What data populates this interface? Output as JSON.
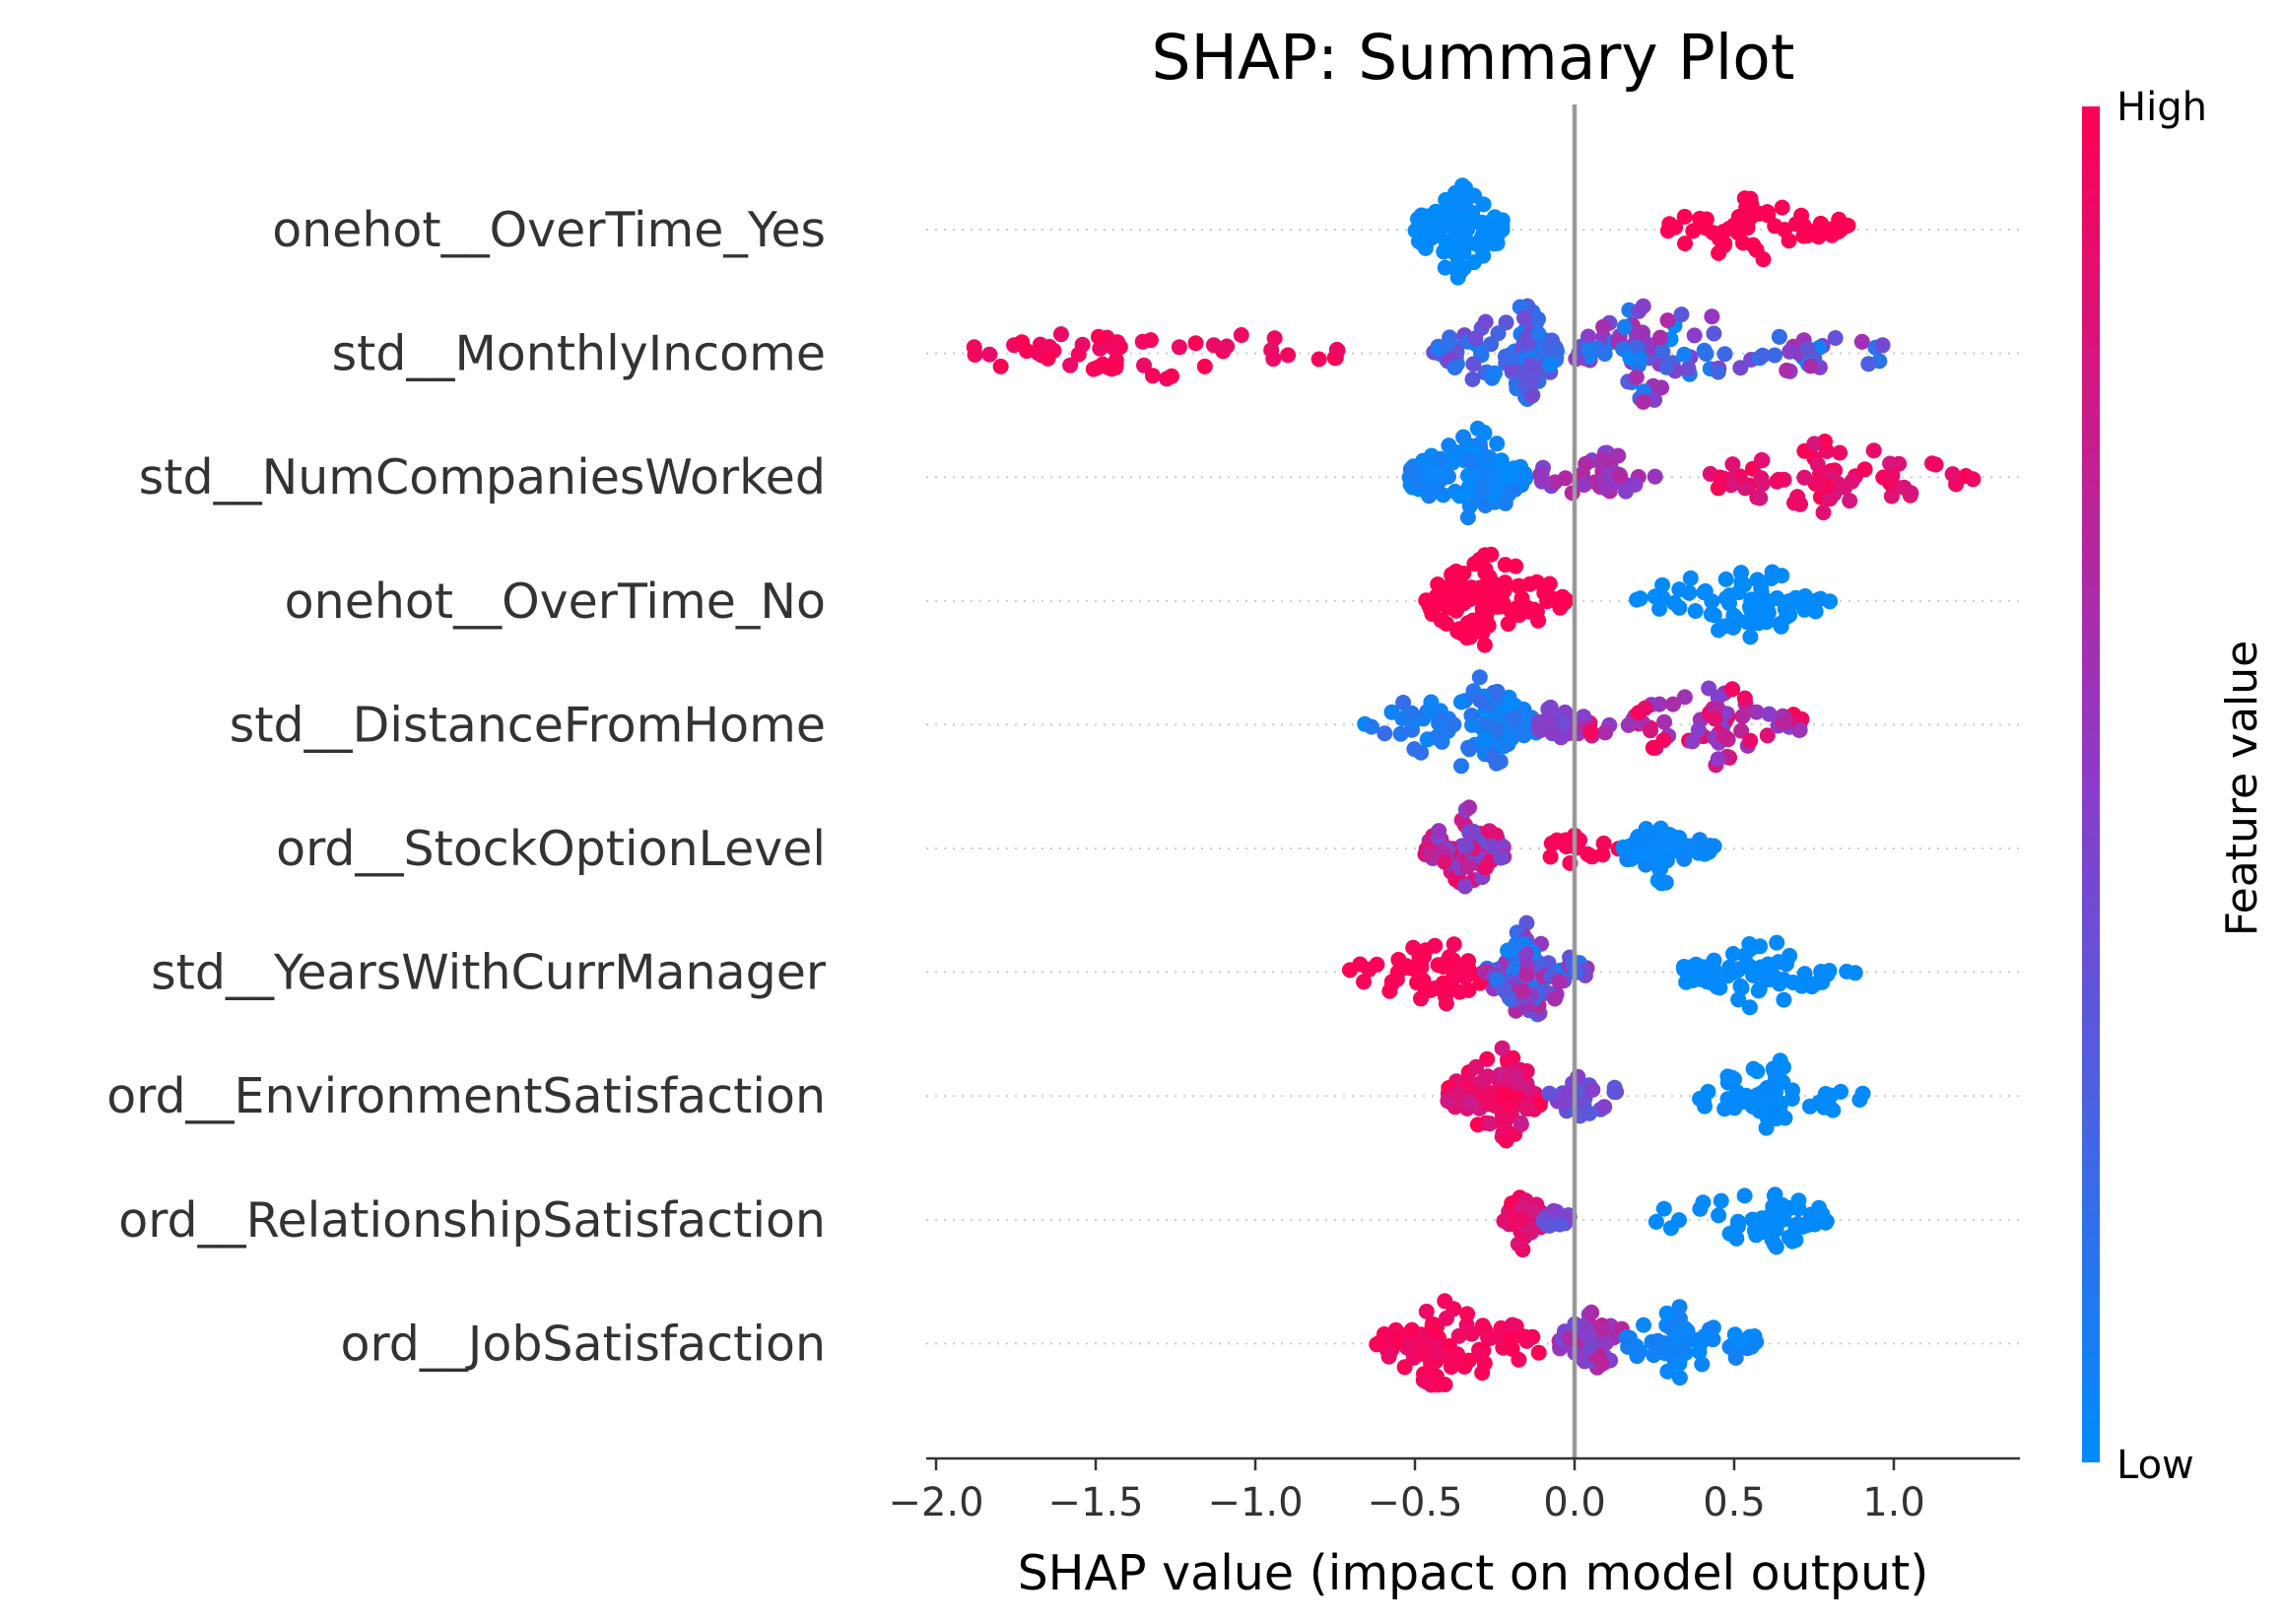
{
  "chart_data": {
    "type": "scatter",
    "subtype": "beeswarm",
    "title": "SHAP: Summary Plot",
    "xlabel": "SHAP value (impact on model output)",
    "ylabel": "",
    "xlim": [
      -2.05,
      1.4
    ],
    "xticks": [
      -2.0,
      -1.5,
      -1.0,
      -0.5,
      0.0,
      0.5,
      1.0
    ],
    "xtick_labels": [
      "−2.0",
      "−1.5",
      "−1.0",
      "−0.5",
      "0.0",
      "0.5",
      "1.0"
    ],
    "grid": "dotted row guides",
    "zero_line": 0.0,
    "colorbar": {
      "title": "Feature value",
      "high_label": "High",
      "low_label": "Low",
      "high_color": "#ff0d57",
      "mid_color": "#8b3cc9",
      "low_color": "#1e88e5"
    },
    "features": [
      {
        "name": "onehot__OverTime_Yes",
        "clusters": [
          {
            "min": -0.5,
            "max": -0.22,
            "center": -0.37,
            "n": 110,
            "low": 0.0,
            "high": 0.02
          },
          {
            "min": 0.28,
            "max": 0.88,
            "center": 0.55,
            "n": 60,
            "low": 0.98,
            "high": 1.0
          }
        ]
      },
      {
        "name": "std__MonthlyIncome",
        "clusters": [
          {
            "min": -1.9,
            "max": -0.7,
            "center": -1.45,
            "n": 55,
            "low": 0.9,
            "high": 1.0
          },
          {
            "min": -0.45,
            "max": -0.05,
            "center": -0.15,
            "n": 150,
            "low": 0.05,
            "high": 0.45
          },
          {
            "min": 0.0,
            "max": 0.97,
            "center": 0.2,
            "n": 110,
            "low": 0.0,
            "high": 0.65
          }
        ]
      },
      {
        "name": "std__NumCompaniesWorked",
        "clusters": [
          {
            "min": -0.52,
            "max": -0.15,
            "center": -0.3,
            "n": 120,
            "low": 0.0,
            "high": 0.1
          },
          {
            "min": -0.12,
            "max": 0.3,
            "center": 0.1,
            "n": 40,
            "low": 0.45,
            "high": 0.7
          },
          {
            "min": 0.4,
            "max": 1.25,
            "center": 0.8,
            "n": 70,
            "low": 0.8,
            "high": 1.0
          }
        ]
      },
      {
        "name": "onehot__OverTime_No",
        "clusters": [
          {
            "min": -0.47,
            "max": -0.01,
            "center": -0.28,
            "n": 120,
            "low": 0.98,
            "high": 1.0
          },
          {
            "min": 0.17,
            "max": 0.8,
            "center": 0.55,
            "n": 70,
            "low": 0.0,
            "high": 0.02
          }
        ]
      },
      {
        "name": "std__DistanceFromHome",
        "clusters": [
          {
            "min": -0.67,
            "max": -0.12,
            "center": -0.28,
            "n": 110,
            "low": 0.0,
            "high": 0.2
          },
          {
            "min": -0.12,
            "max": 0.0,
            "center": -0.07,
            "n": 25,
            "low": 0.35,
            "high": 0.55
          },
          {
            "min": 0.0,
            "max": 0.72,
            "center": 0.45,
            "n": 80,
            "low": 0.45,
            "high": 1.0
          }
        ]
      },
      {
        "name": "ord__StockOptionLevel",
        "clusters": [
          {
            "min": -0.47,
            "max": -0.22,
            "center": -0.33,
            "n": 80,
            "low": 0.35,
            "high": 0.95
          },
          {
            "min": -0.08,
            "max": 0.15,
            "center": 0.0,
            "n": 20,
            "low": 0.95,
            "high": 1.0
          },
          {
            "min": 0.15,
            "max": 0.44,
            "center": 0.27,
            "n": 70,
            "low": 0.0,
            "high": 0.05
          }
        ]
      },
      {
        "name": "std__YearsWithCurrManager",
        "clusters": [
          {
            "min": -0.72,
            "max": -0.28,
            "center": -0.4,
            "n": 60,
            "low": 0.95,
            "high": 1.0
          },
          {
            "min": -0.28,
            "max": 0.05,
            "center": -0.15,
            "n": 110,
            "low": 0.0,
            "high": 0.7
          },
          {
            "min": 0.33,
            "max": 0.88,
            "center": 0.55,
            "n": 70,
            "low": 0.0,
            "high": 0.02
          }
        ]
      },
      {
        "name": "ord__EnvironmentSatisfaction",
        "clusters": [
          {
            "min": -0.4,
            "max": -0.1,
            "center": -0.22,
            "n": 120,
            "low": 0.75,
            "high": 1.0
          },
          {
            "min": -0.08,
            "max": 0.13,
            "center": 0.02,
            "n": 30,
            "low": 0.3,
            "high": 0.5
          },
          {
            "min": 0.38,
            "max": 0.92,
            "center": 0.63,
            "n": 70,
            "low": 0.0,
            "high": 0.02
          }
        ]
      },
      {
        "name": "ord__RelationshipSatisfaction",
        "clusters": [
          {
            "min": -0.23,
            "max": -0.1,
            "center": -0.16,
            "n": 55,
            "low": 0.8,
            "high": 1.0
          },
          {
            "min": -0.1,
            "max": 0.0,
            "center": -0.05,
            "n": 15,
            "low": 0.3,
            "high": 0.5
          },
          {
            "min": 0.22,
            "max": 0.8,
            "center": 0.62,
            "n": 50,
            "low": 0.0,
            "high": 0.02
          }
        ]
      },
      {
        "name": "ord__JobSatisfaction",
        "clusters": [
          {
            "min": -0.62,
            "max": -0.1,
            "center": -0.43,
            "n": 90,
            "low": 0.9,
            "high": 1.0
          },
          {
            "min": -0.05,
            "max": 0.18,
            "center": 0.06,
            "n": 60,
            "low": 0.35,
            "high": 0.75
          },
          {
            "min": 0.15,
            "max": 0.57,
            "center": 0.33,
            "n": 70,
            "low": 0.0,
            "high": 0.08
          }
        ]
      }
    ]
  }
}
